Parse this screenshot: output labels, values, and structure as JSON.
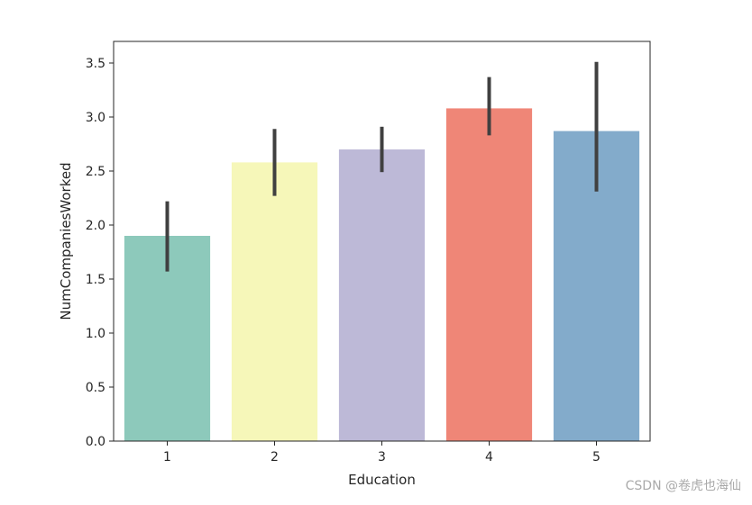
{
  "chart_data": {
    "type": "bar",
    "title": "",
    "xlabel": "Education",
    "ylabel": "NumCompaniesWorked",
    "categories": [
      "1",
      "2",
      "3",
      "4",
      "5"
    ],
    "values": [
      1.9,
      2.58,
      2.7,
      3.08,
      2.87
    ],
    "error_low": [
      1.57,
      2.27,
      2.49,
      2.83,
      2.31
    ],
    "error_high": [
      2.22,
      2.89,
      2.91,
      3.37,
      3.51
    ],
    "colors": [
      "#8dc9bb",
      "#f6f7b9",
      "#bdb9d7",
      "#ef8677",
      "#83abcb"
    ],
    "error_color": "#404040",
    "ylim": [
      0,
      3.7
    ],
    "yticks": [
      0.0,
      0.5,
      1.0,
      1.5,
      2.0,
      2.5,
      3.0,
      3.5
    ],
    "ytick_labels": [
      "0.0",
      "0.5",
      "1.0",
      "1.5",
      "2.0",
      "2.5",
      "3.0",
      "3.5"
    ],
    "grid": false,
    "legend": "none"
  },
  "watermark": "CSDN @卷虎也海仙"
}
